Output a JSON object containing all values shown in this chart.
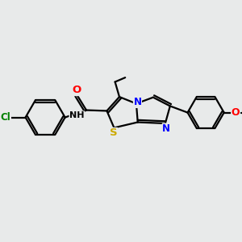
{
  "background_color": "#e8eaea",
  "line_color": "#000000",
  "bond_width": 1.6,
  "atom_colors": {
    "O": "#ff0000",
    "N": "#0000ff",
    "S": "#ccaa00",
    "Cl": "#008000",
    "C": "#000000",
    "H": "#000000"
  },
  "font_size": 8.5,
  "fig_width": 3.0,
  "fig_height": 3.0,
  "dpi": 100,
  "xlim": [
    0,
    10
  ],
  "ylim": [
    0,
    10
  ]
}
